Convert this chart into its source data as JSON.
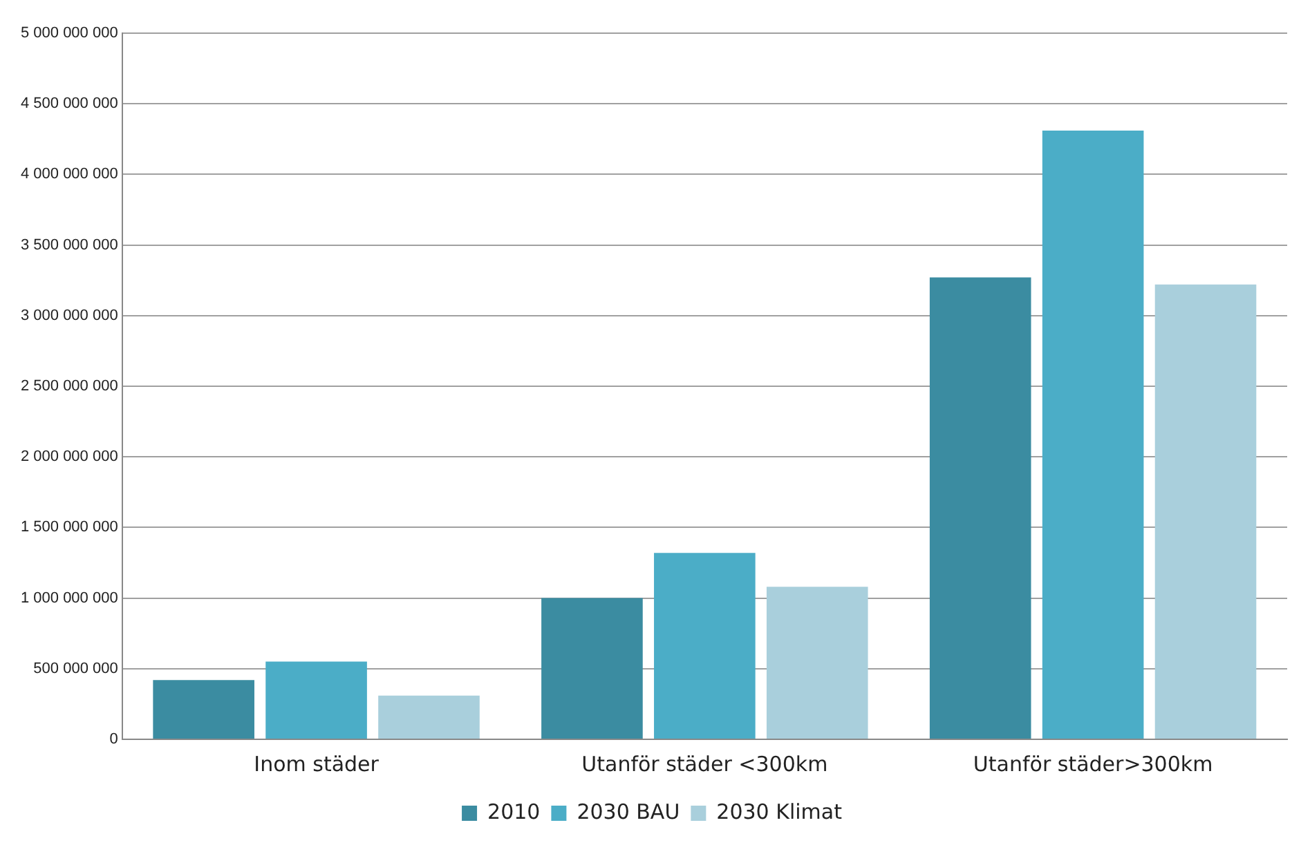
{
  "chart_data": {
    "type": "bar",
    "categories": [
      "Inom städer",
      "Utanför städer <300km",
      "Utanför städer>300km"
    ],
    "series": [
      {
        "name": "2010",
        "color": "#3b8ca1",
        "values": [
          420000000,
          1000000000,
          3270000000
        ]
      },
      {
        "name": "2030 BAU",
        "color": "#4badc7",
        "values": [
          550000000,
          1320000000,
          4310000000
        ]
      },
      {
        "name": "2030 Klimat",
        "color": "#a9cfdc",
        "values": [
          310000000,
          1080000000,
          3220000000
        ]
      }
    ],
    "ylim": [
      0,
      5000000000
    ],
    "yticks": [
      0,
      {
        "value": 500000000,
        "label": "500 000 000"
      },
      {
        "value": 1000000000,
        "label": "1 000 000 000"
      },
      {
        "value": 1500000000,
        "label": "1 500 000 000"
      },
      {
        "value": 2000000000,
        "label": "2 000 000 000"
      },
      {
        "value": 2500000000,
        "label": "2 500 000 000"
      },
      {
        "value": 3000000000,
        "label": "3 000 000 000"
      },
      {
        "value": 3500000000,
        "label": "3 500 000 000"
      },
      {
        "value": 4000000000,
        "label": "4 000 000 000"
      },
      {
        "value": 4500000000,
        "label": "4 500 000 000"
      },
      {
        "value": 5000000000,
        "label": "5 000 000 000"
      }
    ],
    "grid": "y",
    "legend": "bottom"
  }
}
